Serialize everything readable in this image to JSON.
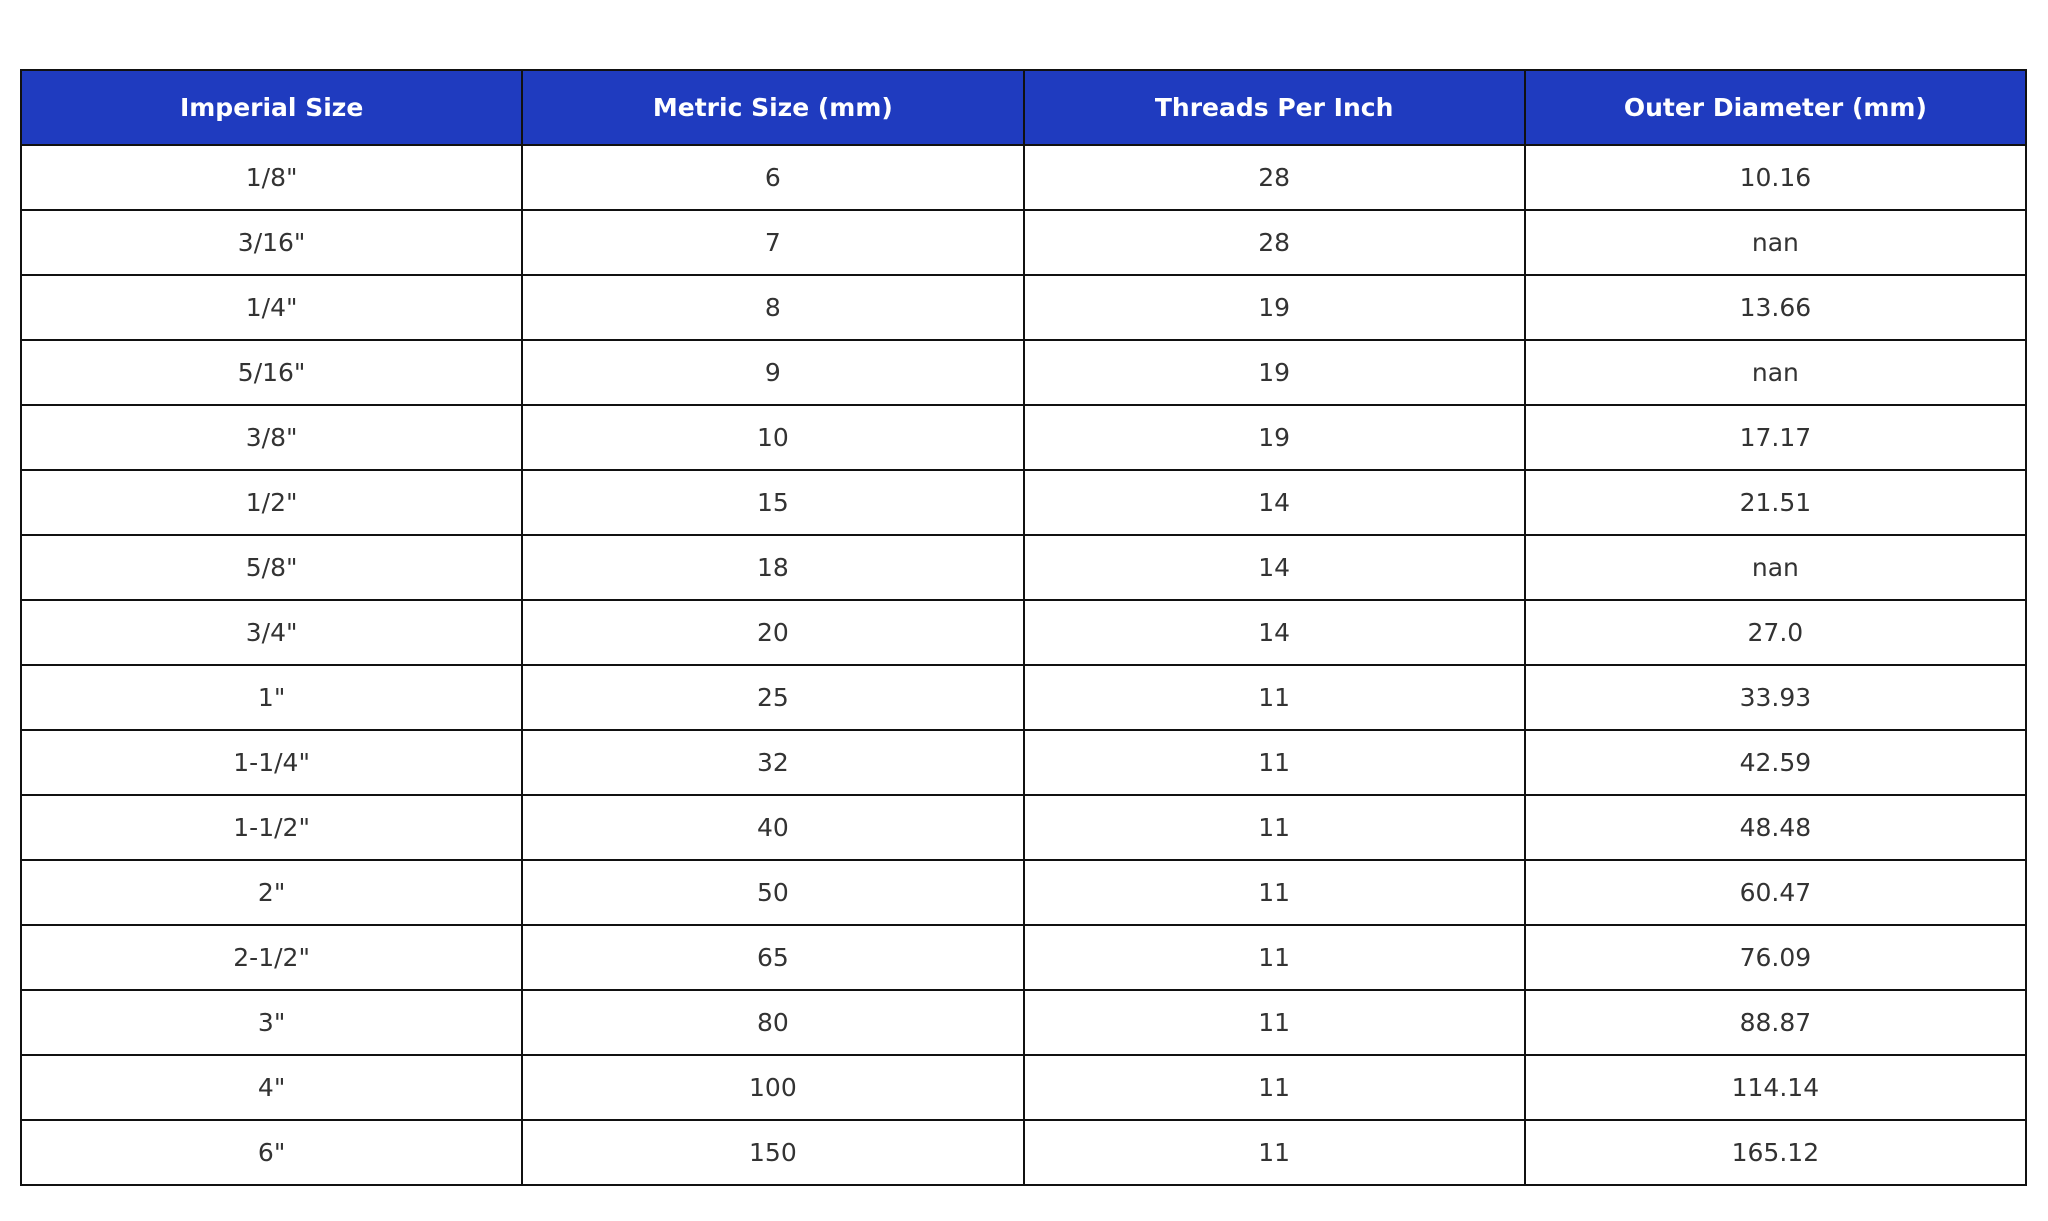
{
  "colors": {
    "header_bg": "#1f3bbf",
    "header_text": "#ffffff",
    "cell_text": "#333333",
    "border": "#111111"
  },
  "table": {
    "headers": [
      "Imperial Size",
      "Metric Size (mm)",
      "Threads Per Inch",
      "Outer Diameter (mm)"
    ],
    "rows": [
      [
        "1/8\"",
        "6",
        "28",
        "10.16"
      ],
      [
        "3/16\"",
        "7",
        "28",
        "nan"
      ],
      [
        "1/4\"",
        "8",
        "19",
        "13.66"
      ],
      [
        "5/16\"",
        "9",
        "19",
        "nan"
      ],
      [
        "3/8\"",
        "10",
        "19",
        "17.17"
      ],
      [
        "1/2\"",
        "15",
        "14",
        "21.51"
      ],
      [
        "5/8\"",
        "18",
        "14",
        "nan"
      ],
      [
        "3/4\"",
        "20",
        "14",
        "27.0"
      ],
      [
        "1\"",
        "25",
        "11",
        "33.93"
      ],
      [
        "1-1/4\"",
        "32",
        "11",
        "42.59"
      ],
      [
        "1-1/2\"",
        "40",
        "11",
        "48.48"
      ],
      [
        "2\"",
        "50",
        "11",
        "60.47"
      ],
      [
        "2-1/2\"",
        "65",
        "11",
        "76.09"
      ],
      [
        "3\"",
        "80",
        "11",
        "88.87"
      ],
      [
        "4\"",
        "100",
        "11",
        "114.14"
      ],
      [
        "6\"",
        "150",
        "11",
        "165.12"
      ]
    ]
  }
}
